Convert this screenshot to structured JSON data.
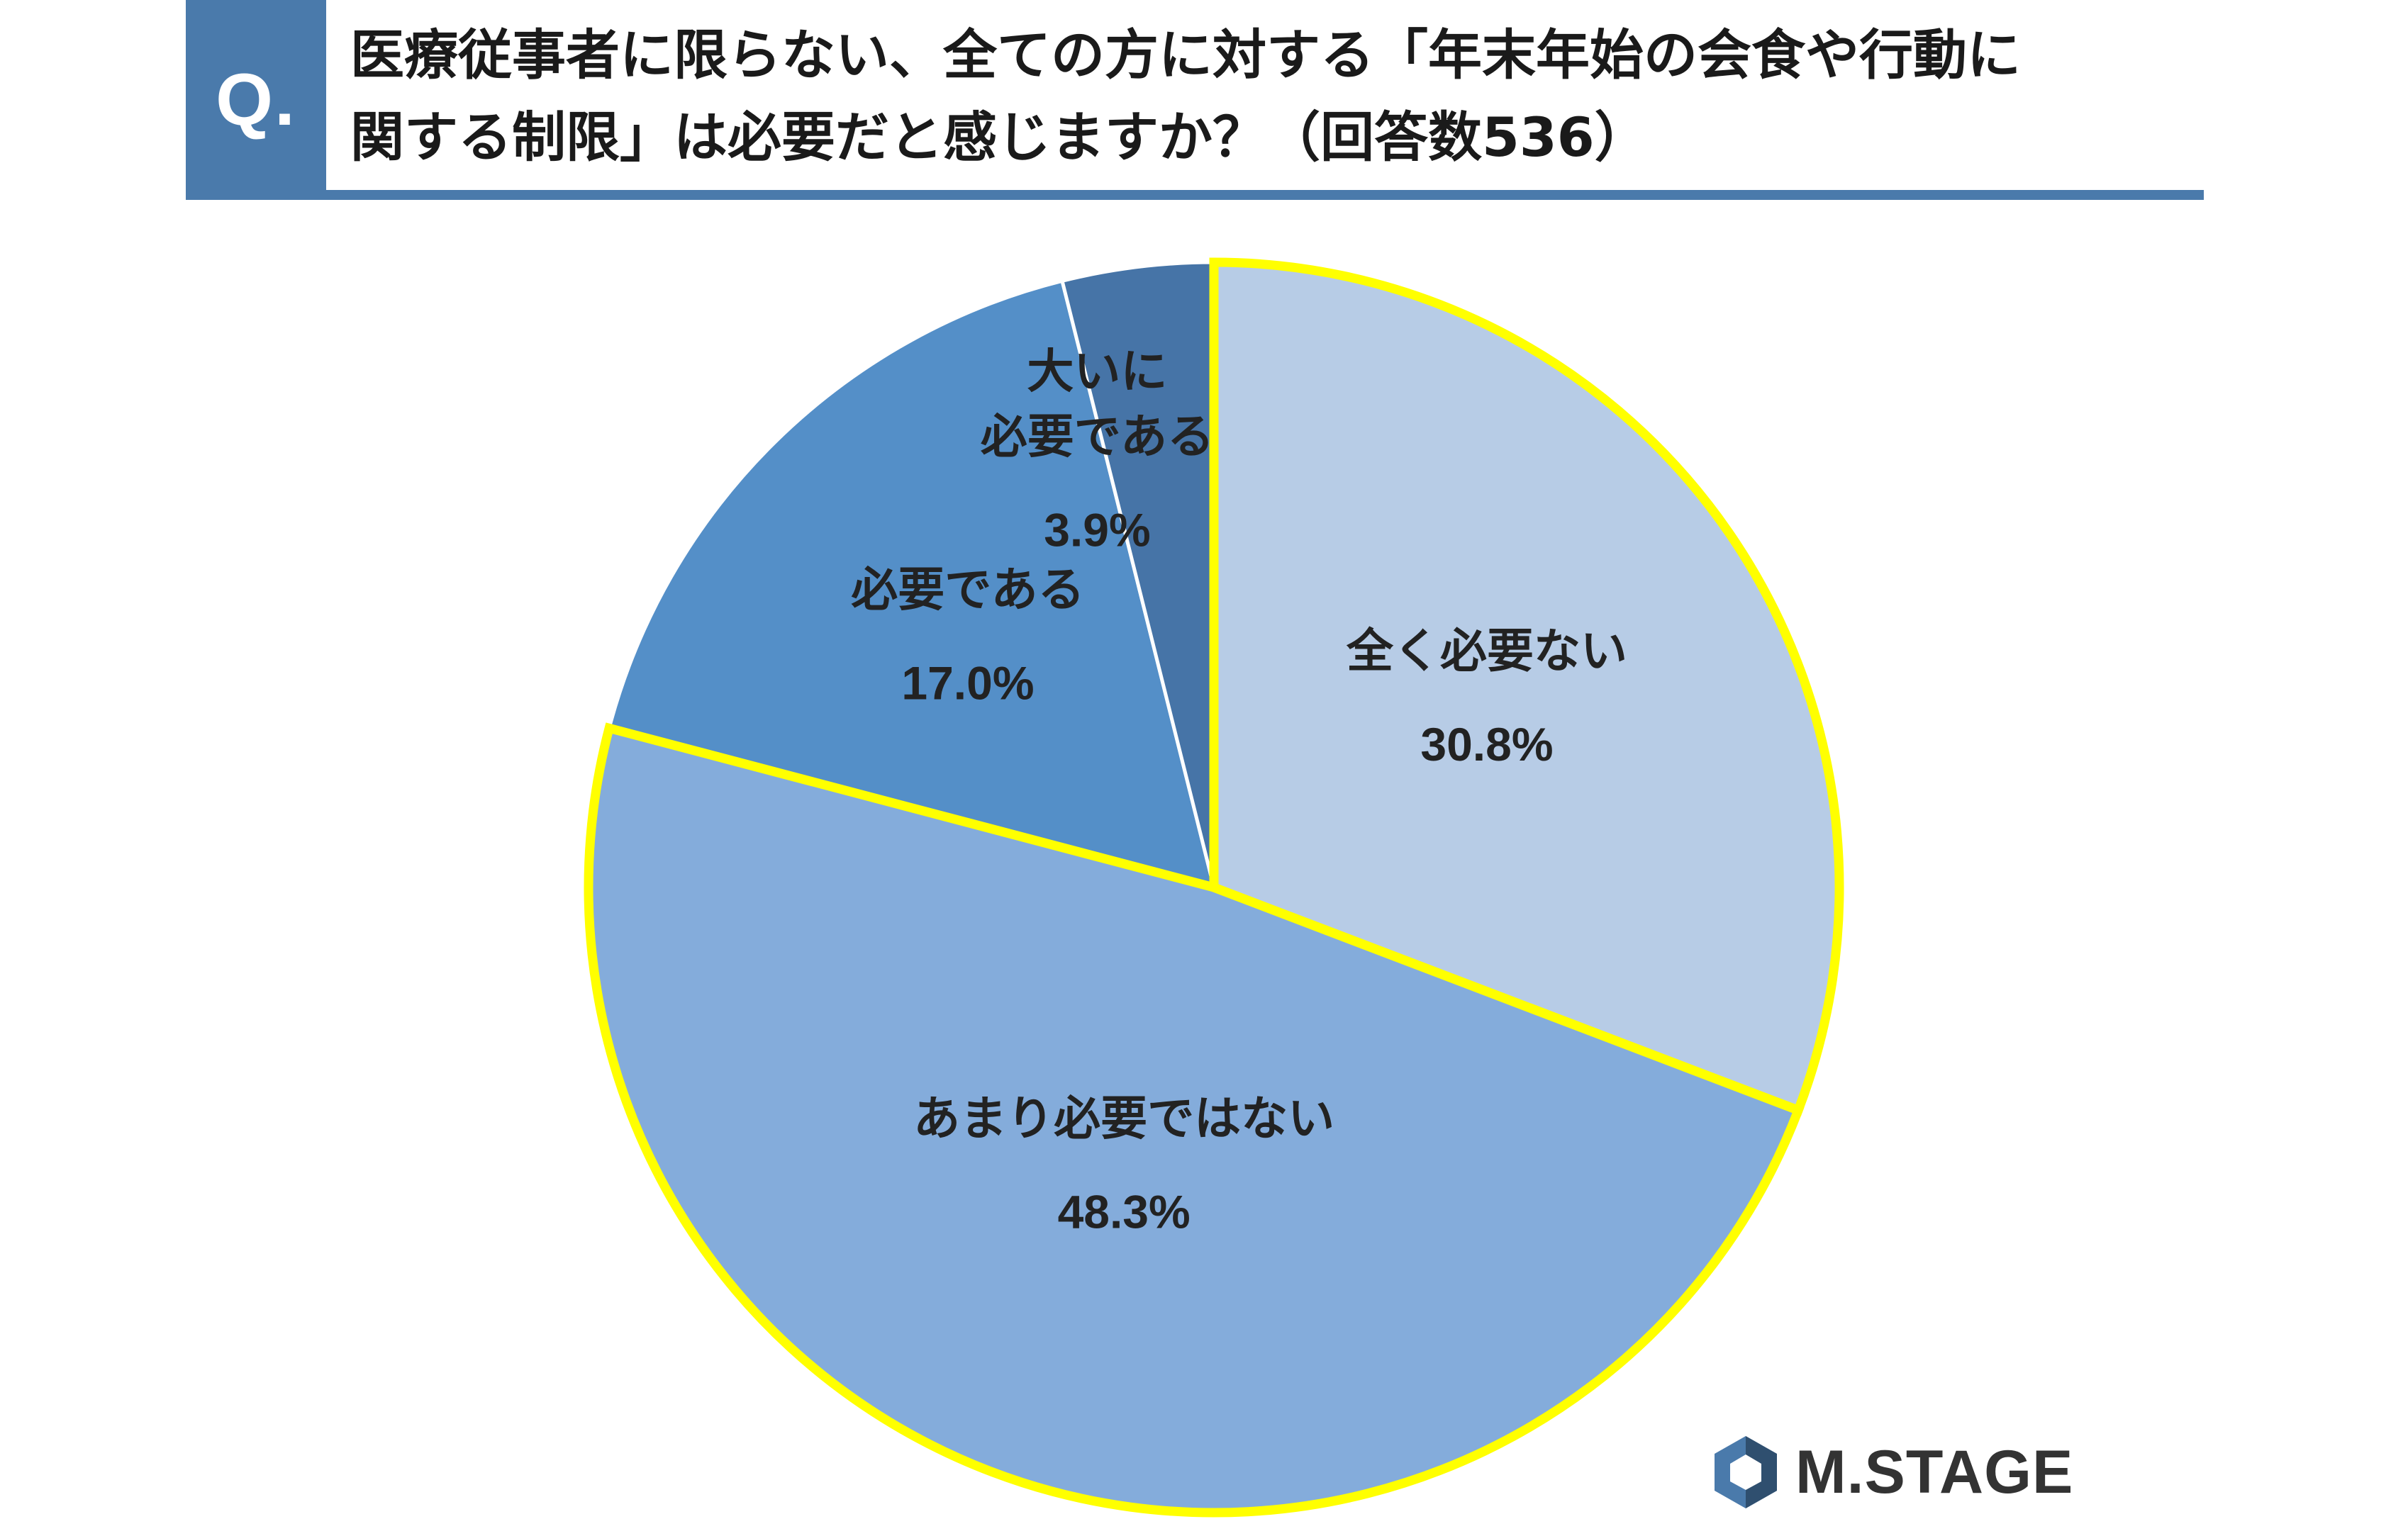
{
  "header": {
    "badge": "Q.",
    "question_line1": "医療従事者に限らない、全ての方に対する「年末年始の会食や行動に",
    "question_line2": "関する制限」は必要だと感じますか？（回答数536）"
  },
  "chart_data": {
    "type": "pie",
    "start_angle_deg": 0,
    "direction": "clockwise",
    "slices": [
      {
        "label": "全く必要ない",
        "value": 30.8,
        "value_label": "30.8%",
        "color": "#b7cce6",
        "highlight": true
      },
      {
        "label": "あまり必要ではない",
        "value": 48.3,
        "value_label": "48.3%",
        "color": "#84acdb",
        "highlight": true
      },
      {
        "label": "必要である",
        "value": 17.0,
        "value_label": "17.0%",
        "color": "#548fc8",
        "highlight": false
      },
      {
        "label": "大いに\n必要である",
        "value": 3.9,
        "value_label": "3.9%",
        "color": "#4674a7",
        "highlight": false
      }
    ],
    "highlight_color": "#ffff00",
    "legend": "none"
  },
  "logo": {
    "text": "M.STAGE",
    "icon": "hexagon-logo-icon",
    "colors": [
      "#4a7aab",
      "#2f4f6f"
    ]
  }
}
